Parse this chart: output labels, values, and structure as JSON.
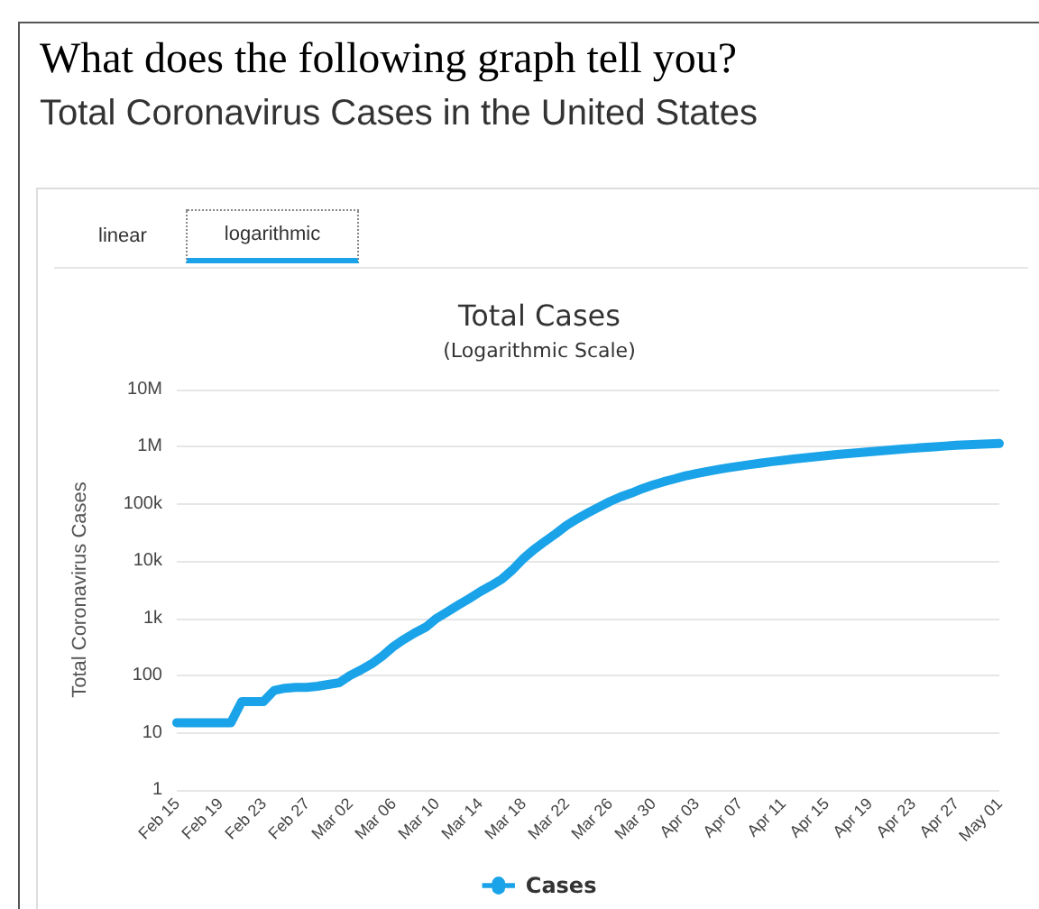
{
  "chart_data": {
    "type": "line",
    "title": "Total Cases",
    "subtitle": "(Logarithmic Scale)",
    "ylabel": "Total Coronavirus Cases",
    "annotations": [
      "What does the following graph tell you?",
      "Total Coronavirus Cases in the United States",
      "linear",
      "logarithmic"
    ],
    "categories": [
      "Feb 15",
      null,
      null,
      null,
      "Feb 19",
      null,
      null,
      null,
      "Feb 23",
      null,
      null,
      null,
      "Feb 27",
      null,
      null,
      null,
      "Mar 02",
      null,
      null,
      null,
      "Mar 06",
      null,
      null,
      null,
      "Mar 10",
      null,
      null,
      null,
      "Mar 14",
      null,
      null,
      null,
      "Mar 18",
      null,
      null,
      null,
      "Mar 22",
      null,
      null,
      null,
      "Mar 26",
      null,
      null,
      null,
      "Mar 30",
      null,
      null,
      null,
      "Apr 03",
      null,
      null,
      null,
      "Apr 07",
      null,
      null,
      null,
      "Apr 11",
      null,
      null,
      null,
      "Apr 15",
      null,
      null,
      null,
      "Apr 19",
      null,
      null,
      null,
      "Apr 23",
      null,
      null,
      null,
      "Apr 27",
      null,
      null,
      null,
      "May 01"
    ],
    "series": [
      {
        "name": "Cases",
        "color": "#1aa3e8",
        "values": [
          15,
          15,
          15,
          15,
          15,
          15,
          35,
          35,
          35,
          55,
          60,
          62,
          62,
          65,
          70,
          75,
          100,
          125,
          160,
          220,
          320,
          430,
          560,
          700,
          1000,
          1300,
          1700,
          2200,
          2900,
          3700,
          4800,
          7000,
          11000,
          16000,
          22000,
          30000,
          42000,
          55000,
          70000,
          88000,
          110000,
          133000,
          155000,
          185000,
          215000,
          245000,
          275000,
          310000,
          340000,
          370000,
          400000,
          430000,
          460000,
          490000,
          520000,
          550000,
          580000,
          610000,
          640000,
          670000,
          700000,
          730000,
          760000,
          790000,
          820000,
          850000,
          880000,
          910000,
          940000,
          970000,
          1000000,
          1030000,
          1060000,
          1080000,
          1100000,
          1120000,
          1140000
        ]
      }
    ],
    "log": "y",
    "ylim": [
      1,
      10000000
    ],
    "yticks": [
      1,
      10,
      100,
      {
        "value": 1000,
        "label": "1k"
      },
      {
        "value": 10000,
        "label": "10k"
      },
      {
        "value": 100000,
        "label": "100k"
      },
      {
        "value": 1000000,
        "label": "1M"
      },
      {
        "value": 10000000,
        "label": "10M"
      }
    ],
    "grid": "y",
    "legend": "bottom",
    "marker": "none",
    "line_style": "solid"
  }
}
